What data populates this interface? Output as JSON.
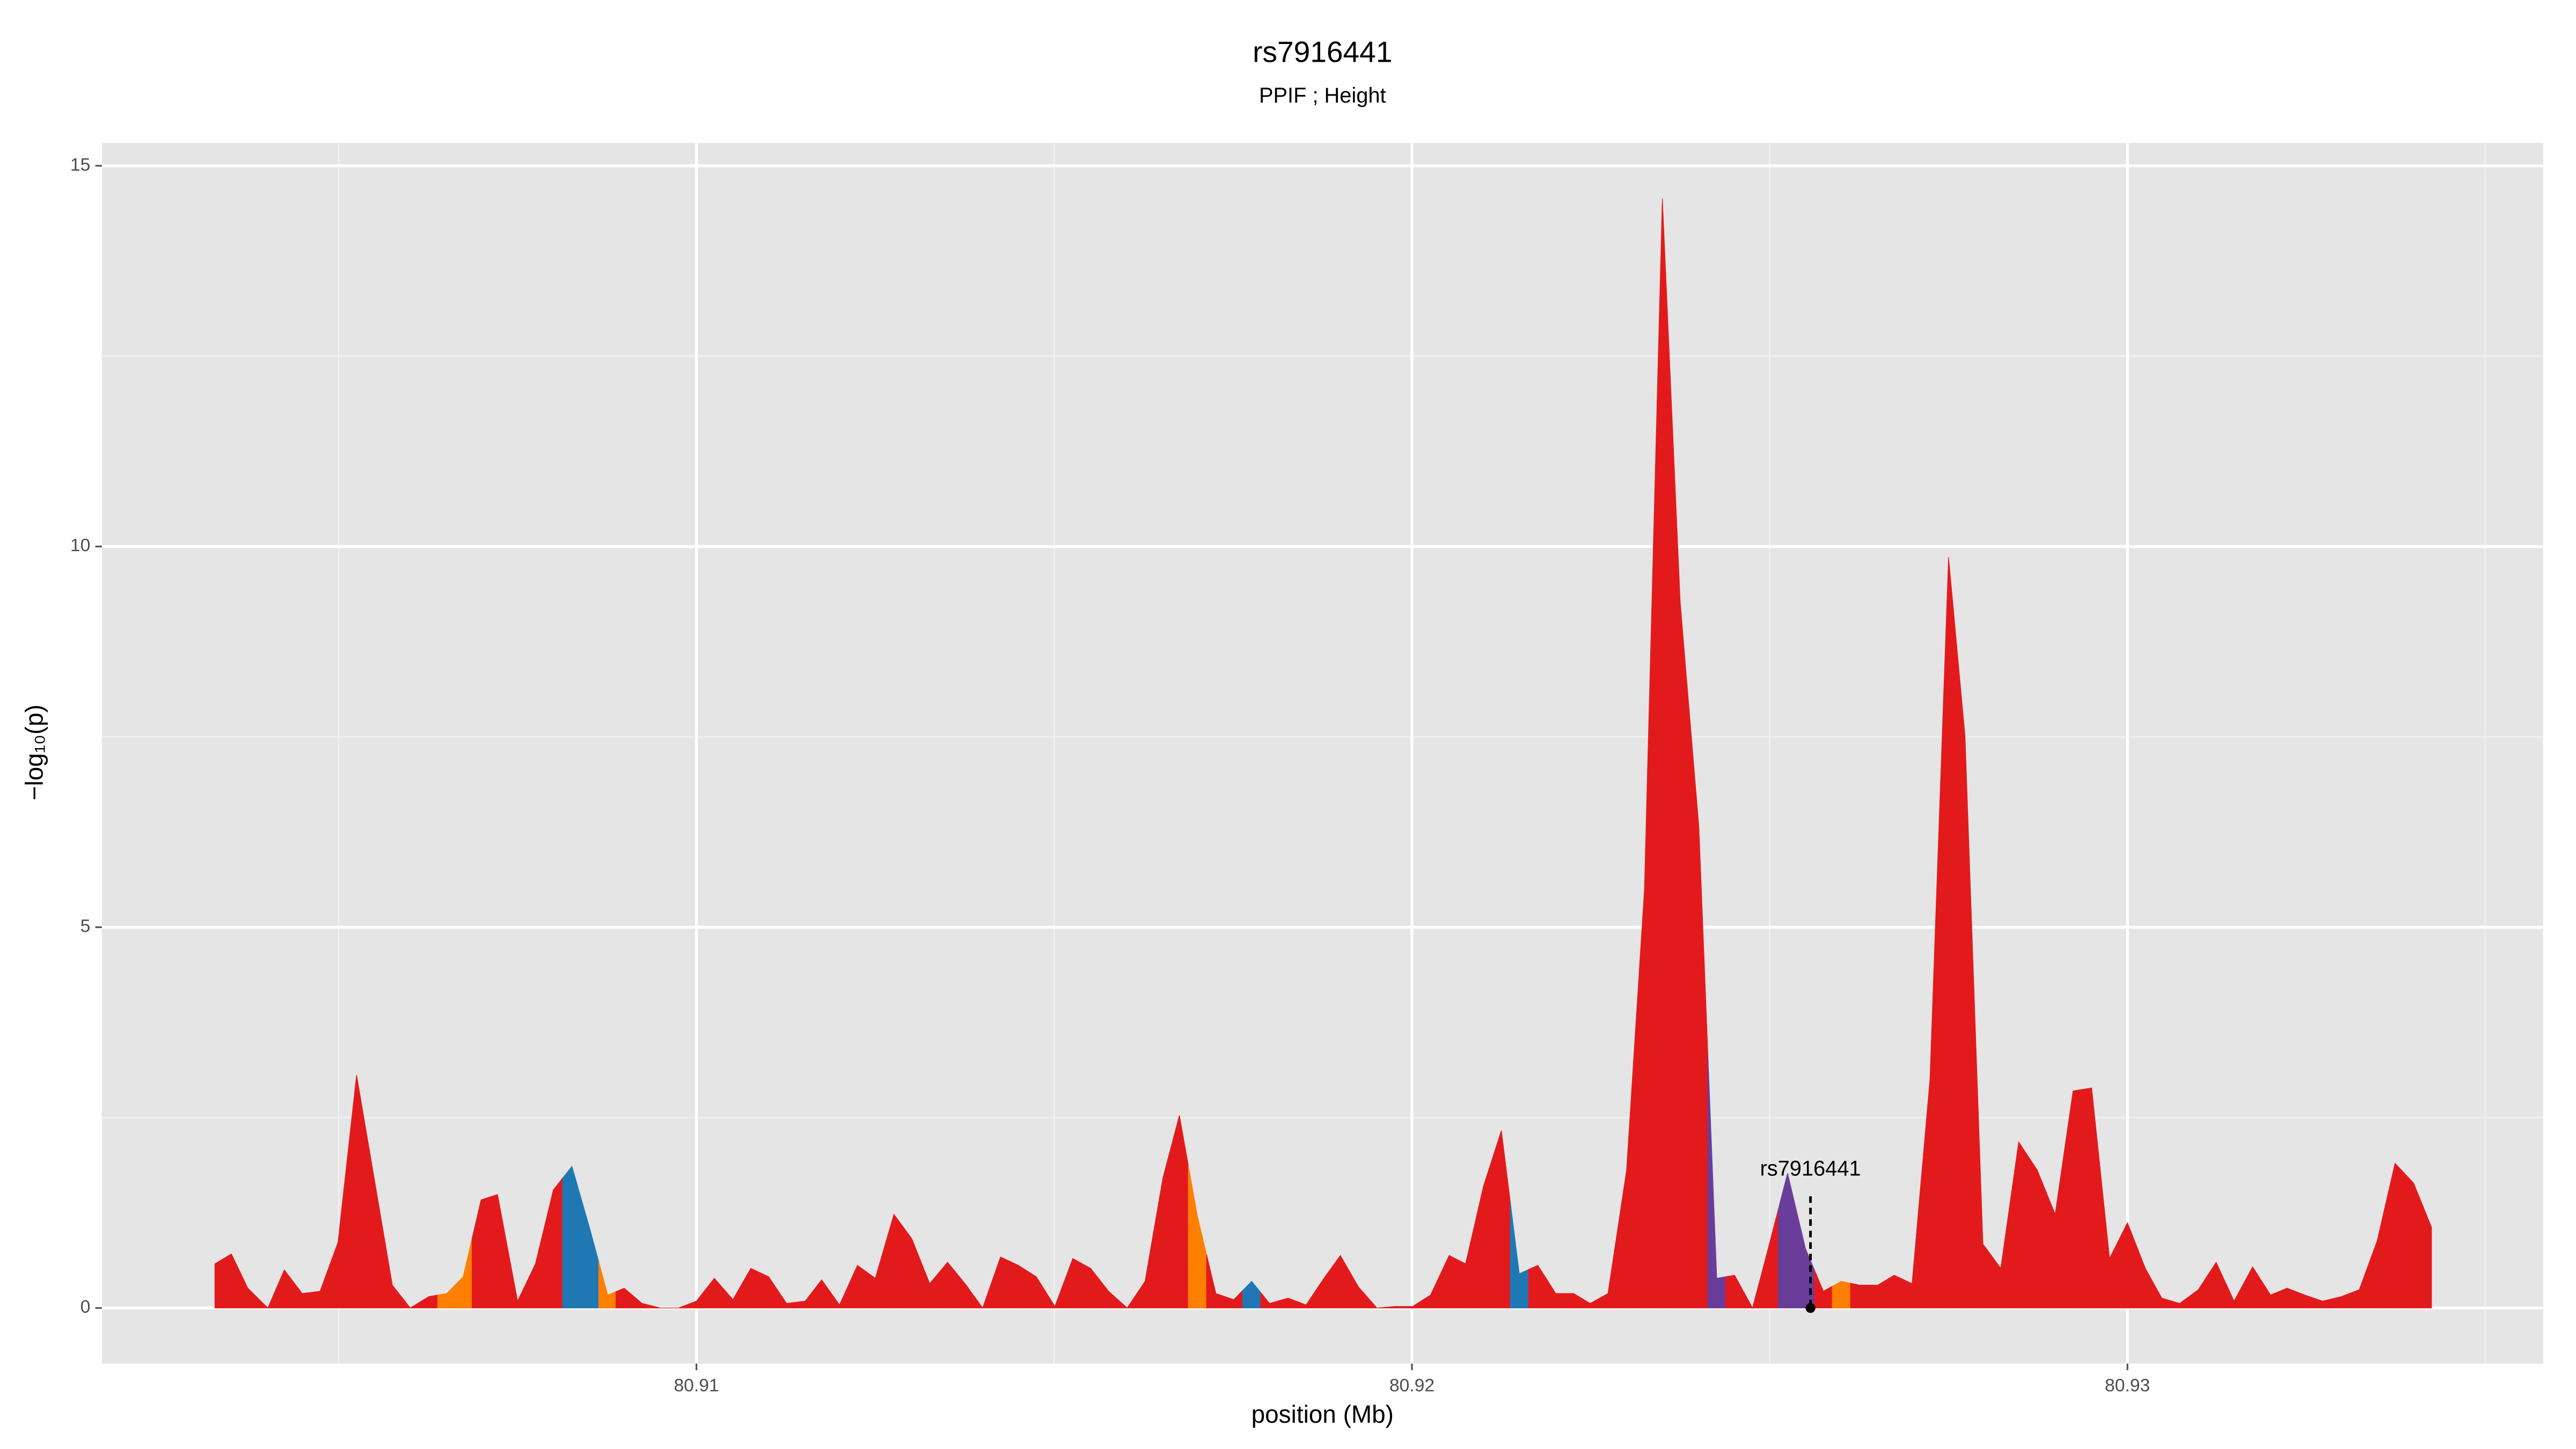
{
  "chart_data": {
    "type": "area",
    "title": "rs7916441",
    "subtitle": "PPIF ; Height",
    "x_label": "position (Mb)",
    "y_label": "−log₁₀(p)",
    "xlim": [
      80.90169,
      80.93581
    ],
    "ylim": [
      -0.73,
      15.3
    ],
    "xticks": [
      80.91,
      80.92,
      80.93
    ],
    "yticks": [
      0,
      5,
      10,
      15
    ],
    "grid": true,
    "x": [
      80.90327,
      80.9035,
      80.90373,
      80.90401,
      80.90424,
      80.90449,
      80.90474,
      80.90499,
      80.90525,
      80.9055,
      80.90575,
      80.906,
      80.90626,
      80.90651,
      80.90674,
      80.90699,
      80.90722,
      80.9075,
      80.90775,
      80.908,
      80.90826,
      80.90851,
      80.90876,
      80.90899,
      80.90924,
      80.9095,
      80.90975,
      80.91,
      80.91025,
      80.91051,
      80.91076,
      80.91101,
      80.91126,
      80.91152,
      80.91175,
      80.912,
      80.91225,
      80.9125,
      80.91276,
      80.91301,
      80.91326,
      80.91351,
      80.91377,
      80.914,
      80.91425,
      80.9145,
      80.91475,
      80.91501,
      80.91526,
      80.91551,
      80.91576,
      80.91602,
      80.91627,
      80.91652,
      80.91675,
      80.917,
      80.91726,
      80.91751,
      80.91776,
      80.91801,
      80.91827,
      80.91852,
      80.91877,
      80.919,
      80.91925,
      80.91951,
      80.91976,
      80.92001,
      80.92026,
      80.92052,
      80.92075,
      80.921,
      80.92125,
      80.9215,
      80.92176,
      80.92201,
      80.92226,
      80.92249,
      80.92274,
      80.923,
      80.92325,
      80.9235,
      80.92375,
      80.92401,
      80.92426,
      80.92451,
      80.92476,
      80.92499,
      80.92525,
      80.9255,
      80.92575,
      80.926,
      80.92626,
      80.92651,
      80.92674,
      80.92699,
      80.92724,
      80.9275,
      80.92773,
      80.92798,
      80.92823,
      80.92848,
      80.92874,
      80.92899,
      80.92924,
      80.9295,
      80.92975,
      80.93,
      80.93025,
      80.93048,
      80.93073,
      80.93099,
      80.93124,
      80.93149,
      80.93175,
      80.932,
      80.93223,
      80.93248,
      80.93273,
      80.93299,
      80.93324,
      80.93349,
      80.93374,
      80.934,
      80.93425
    ],
    "values": [
      0.58,
      0.71,
      0.26,
      0,
      0.5,
      0.19,
      0.22,
      0.86,
      3.06,
      1.68,
      0.3,
      0,
      0.15,
      0.19,
      0.41,
      1.42,
      1.49,
      0.09,
      0.58,
      1.55,
      1.86,
      1.04,
      0.17,
      0.26,
      0.06,
      0,
      0,
      0.09,
      0.39,
      0.11,
      0.52,
      0.41,
      0.06,
      0.09,
      0.37,
      0.04,
      0.56,
      0.39,
      1.23,
      0.91,
      0.32,
      0.6,
      0.3,
      0,
      0.67,
      0.56,
      0.41,
      0.02,
      0.65,
      0.52,
      0.22,
      0,
      0.35,
      1.71,
      2.53,
      1.21,
      0.19,
      0.11,
      0.35,
      0.06,
      0.13,
      0.04,
      0.39,
      0.69,
      0.28,
      0,
      0.02,
      0.02,
      0.17,
      0.69,
      0.58,
      1.6,
      2.33,
      0.45,
      0.56,
      0.19,
      0.19,
      0.06,
      0.19,
      1.81,
      5.5,
      14.57,
      9.26,
      6.32,
      0.39,
      0.43,
      0,
      0.82,
      1.77,
      0.78,
      0.22,
      0.35,
      0.3,
      0.3,
      0.43,
      0.32,
      3.0,
      9.86,
      7.51,
      0.84,
      0.52,
      2.18,
      1.81,
      1.23,
      2.85,
      2.89,
      0.65,
      1.12,
      0.52,
      0.13,
      0.06,
      0.24,
      0.6,
      0.09,
      0.54,
      0.17,
      0.26,
      0.17,
      0.09,
      0.15,
      0.24,
      0.88,
      1.9,
      1.64,
      1.06
    ],
    "colors": [
      "#e31a1c",
      "#e31a1c",
      "#e31a1c",
      "#e31a1c",
      "#e31a1c",
      "#e31a1c",
      "#e31a1c",
      "#e31a1c",
      "#e31a1c",
      "#e31a1c",
      "#e31a1c",
      "#e31a1c",
      "#e31a1c",
      "#ff7f00",
      "#ff7f00",
      "#e31a1c",
      "#e31a1c",
      "#e31a1c",
      "#e31a1c",
      "#e31a1c",
      "#1f78b4",
      "#1f78b4",
      "#ff7f00",
      "#e31a1c",
      "#e31a1c",
      "#e31a1c",
      "#e31a1c",
      "#e31a1c",
      "#e31a1c",
      "#e31a1c",
      "#e31a1c",
      "#e31a1c",
      "#e31a1c",
      "#e31a1c",
      "#e31a1c",
      "#e31a1c",
      "#e31a1c",
      "#e31a1c",
      "#e31a1c",
      "#e31a1c",
      "#e31a1c",
      "#e31a1c",
      "#e31a1c",
      "#e31a1c",
      "#e31a1c",
      "#e31a1c",
      "#e31a1c",
      "#e31a1c",
      "#e31a1c",
      "#e31a1c",
      "#e31a1c",
      "#e31a1c",
      "#e31a1c",
      "#e31a1c",
      "#e31a1c",
      "#ff7f00",
      "#e31a1c",
      "#e31a1c",
      "#1f78b4",
      "#e31a1c",
      "#e31a1c",
      "#e31a1c",
      "#e31a1c",
      "#e31a1c",
      "#e31a1c",
      "#e31a1c",
      "#e31a1c",
      "#e31a1c",
      "#e31a1c",
      "#e31a1c",
      "#e31a1c",
      "#e31a1c",
      "#e31a1c",
      "#1f78b4",
      "#e31a1c",
      "#e31a1c",
      "#e31a1c",
      "#e31a1c",
      "#e31a1c",
      "#e31a1c",
      "#e31a1c",
      "#e31a1c",
      "#e31a1c",
      "#e31a1c",
      "#6a3d9a",
      "#e31a1c",
      "#e31a1c",
      "#e31a1c",
      "#6a3d9a",
      "#6a3d9a",
      "#e31a1c",
      "#ff7f00",
      "#e31a1c",
      "#e31a1c",
      "#e31a1c",
      "#e31a1c",
      "#e31a1c",
      "#e31a1c",
      "#e31a1c",
      "#e31a1c",
      "#e31a1c",
      "#e31a1c",
      "#e31a1c",
      "#e31a1c",
      "#e31a1c",
      "#e31a1c",
      "#e31a1c",
      "#e31a1c",
      "#e31a1c",
      "#e31a1c",
      "#e31a1c",
      "#e31a1c",
      "#e31a1c",
      "#e31a1c",
      "#e31a1c",
      "#e31a1c",
      "#e31a1c",
      "#e31a1c",
      "#e31a1c",
      "#e31a1c",
      "#e31a1c",
      "#e31a1c",
      "#e31a1c",
      "#e31a1c",
      "#e31a1c"
    ],
    "annotation": {
      "text": "rs7916441",
      "x": 80.92557,
      "y": 0
    }
  }
}
